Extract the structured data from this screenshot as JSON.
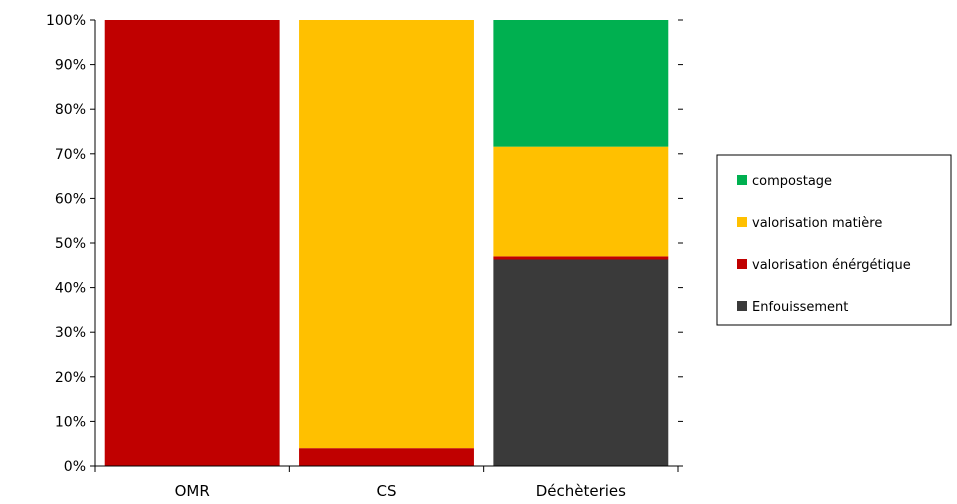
{
  "chart_data": {
    "type": "bar",
    "stacked": true,
    "categories": [
      "OMR",
      "CS",
      "Déchèteries"
    ],
    "yticks": [
      "0%",
      "10%",
      "20%",
      "30%",
      "40%",
      "50%",
      "60%",
      "70%",
      "80%",
      "90%",
      "100%"
    ],
    "ylim": [
      0,
      100
    ],
    "series": [
      {
        "name": "Enfouissement",
        "color": "#3a3a3a",
        "values": [
          0,
          0,
          46.3
        ]
      },
      {
        "name": "valorisation énérgétique",
        "color": "#c00000",
        "values": [
          100,
          4,
          0.7
        ]
      },
      {
        "name": "valorisation matière",
        "color": "#ffc000",
        "values": [
          0,
          96,
          24.6
        ]
      },
      {
        "name": "compostage",
        "color": "#00b050",
        "values": [
          0,
          0,
          28.4
        ]
      }
    ],
    "legend_order": [
      "compostage",
      "valorisation matière",
      "valorisation énérgétique",
      "Enfouissement"
    ],
    "legend_position": "right",
    "grid": false
  }
}
